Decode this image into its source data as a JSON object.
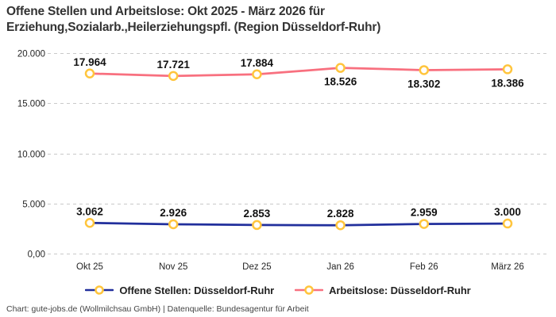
{
  "header": {
    "title_lines": [
      "Offene Stellen und Arbeitslose: Okt 2025 - März 2026 für",
      "Erziehung,Sozialarb.,Heilerziehungspfl. (Region Düsseldorf-Ruhr)"
    ]
  },
  "chart_data": {
    "type": "line",
    "title": "Offene Stellen und Arbeitslose: Okt 2025 - März 2026 für Erziehung,Sozialarb.,Heilerziehungspfl. (Region Düsseldorf-Ruhr)",
    "categories": [
      "Okt 25",
      "Nov 25",
      "Dez 25",
      "Jan 26",
      "Feb 26",
      "März 26"
    ],
    "series": [
      {
        "name": "Offene Stellen: Düsseldorf-Ruhr",
        "color": "#212f9c",
        "values": [
          3062,
          2926,
          2853,
          2828,
          2959,
          3000
        ],
        "point_labels": [
          "3.062",
          "2.926",
          "2.853",
          "2.828",
          "2.959",
          "3.000"
        ],
        "label_side": [
          "above",
          "above",
          "above",
          "above",
          "above",
          "above"
        ]
      },
      {
        "name": "Arbeitslose: Düsseldorf-Ruhr",
        "color": "#f8707f",
        "values": [
          17964,
          17721,
          17884,
          18526,
          18302,
          18386
        ],
        "point_labels": [
          "17.964",
          "17.721",
          "17.884",
          "18.526",
          "18.302",
          "18.386"
        ],
        "label_side": [
          "above",
          "above",
          "above",
          "below",
          "below",
          "below"
        ]
      }
    ],
    "y_axis": {
      "range": [
        0,
        20000
      ],
      "ticks": [
        {
          "value": 0,
          "label": "0,00"
        },
        {
          "value": 5000,
          "label": "5.000"
        },
        {
          "value": 10000,
          "label": "10.000"
        },
        {
          "value": 15000,
          "label": "15.000"
        },
        {
          "value": 20000,
          "label": "20.000"
        }
      ]
    },
    "marker": {
      "fill": "#ffffff",
      "ring": "#ffc53d"
    },
    "gridline_color": "#c9c9c9",
    "grid": "horizontal-dashed",
    "legend_position": "bottom"
  },
  "footer": {
    "text": "Chart: gute-jobs.de (Wollmilchsau GmbH) | Datenquelle: Bundesagentur für Arbeit"
  }
}
